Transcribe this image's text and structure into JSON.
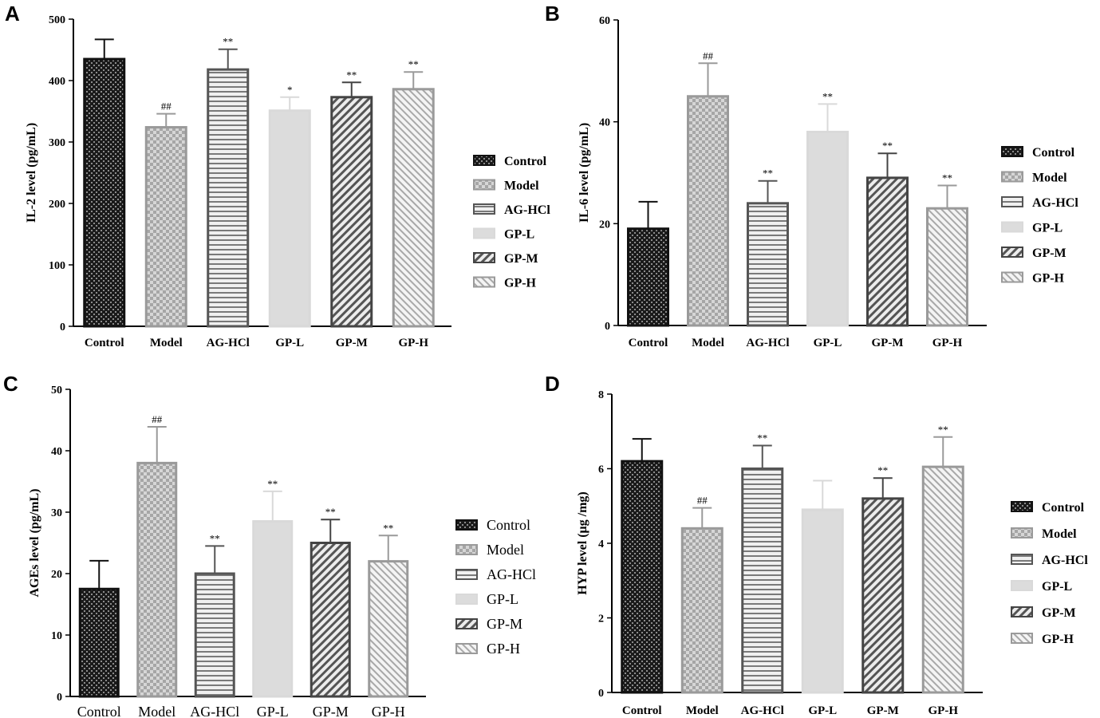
{
  "figure": {
    "series_styles": [
      {
        "name": "Control",
        "stroke": "#111111",
        "pattern": "check-dark"
      },
      {
        "name": "Model",
        "stroke": "#9a9a9a",
        "pattern": "check-light"
      },
      {
        "name": "AG-HCl",
        "stroke": "#555555",
        "pattern": "hlines"
      },
      {
        "name": "GP-L",
        "stroke": "#d9d9d9",
        "pattern": "solid-light"
      },
      {
        "name": "GP-M",
        "stroke": "#444444",
        "pattern": "diag-dark"
      },
      {
        "name": "GP-H",
        "stroke": "#9a9a9a",
        "pattern": "diag-light"
      }
    ]
  },
  "chart_data": [
    {
      "panel": "A",
      "type": "bar",
      "title": "",
      "xlabel": "",
      "ylabel": "IL-2 level (pg/mL)",
      "categories": [
        "Control",
        "Model",
        "AG-HCl",
        "GP-L",
        "GP-M",
        "GP-H"
      ],
      "values": [
        435,
        324,
        418,
        351,
        373,
        386
      ],
      "errors": [
        32,
        22,
        33,
        22,
        24,
        28
      ],
      "significance": [
        "",
        "##",
        "**",
        "*",
        "**",
        "**"
      ],
      "ylim": [
        0,
        500
      ],
      "yticks": [
        0,
        100,
        200,
        300,
        400,
        500
      ],
      "legend": [
        "Control",
        "Model",
        "AG-HCl",
        "GP-L",
        "GP-M",
        "GP-H"
      ],
      "legend_position": "right"
    },
    {
      "panel": "B",
      "type": "bar",
      "title": "",
      "xlabel": "",
      "ylabel": "IL-6 level (pg/mL)",
      "categories": [
        "Control",
        "Model",
        "AG-HCl",
        "GP-L",
        "GP-M",
        "GP-H"
      ],
      "values": [
        19,
        45,
        24,
        38,
        29,
        23
      ],
      "errors": [
        5.3,
        6.5,
        4.4,
        5.5,
        4.8,
        4.5
      ],
      "significance": [
        "",
        "##",
        "**",
        "**",
        "**",
        "**"
      ],
      "ylim": [
        0,
        60
      ],
      "yticks": [
        0,
        20,
        40,
        60
      ],
      "legend": [
        "Control",
        "Model",
        "AG-HCl",
        "GP-L",
        "GP-M",
        "GP-H"
      ],
      "legend_position": "right"
    },
    {
      "panel": "C",
      "type": "bar",
      "title": "",
      "xlabel": "",
      "ylabel": "AGEs level (pg/mL)",
      "categories": [
        "Control",
        "Model",
        "AG-HCl",
        "GP-L",
        "GP-M",
        "GP-H"
      ],
      "values": [
        17.5,
        38,
        20,
        28.5,
        25,
        22
      ],
      "errors": [
        4.6,
        5.9,
        4.5,
        4.9,
        3.8,
        4.2
      ],
      "significance": [
        "",
        "##",
        "**",
        "**",
        "**",
        "**"
      ],
      "ylim": [
        0,
        50
      ],
      "yticks": [
        0,
        10,
        20,
        30,
        40,
        50
      ],
      "legend": [
        "Control",
        "Model",
        "AG-HCl",
        "GP-L",
        "GP-M",
        "GP-H"
      ],
      "legend_position": "right"
    },
    {
      "panel": "D",
      "type": "bar",
      "title": "",
      "xlabel": "",
      "ylabel": "HYP level (μg /mg)",
      "categories": [
        "Control",
        "Model",
        "AG-HCl",
        "GP-L",
        "GP-M",
        "GP-H"
      ],
      "values": [
        6.2,
        4.4,
        6.0,
        4.9,
        5.2,
        6.05
      ],
      "errors": [
        0.6,
        0.55,
        0.62,
        0.78,
        0.55,
        0.8
      ],
      "significance": [
        "",
        "##",
        "**",
        "",
        "**",
        "**"
      ],
      "ylim": [
        0,
        8
      ],
      "yticks": [
        0,
        2,
        4,
        6,
        8
      ],
      "legend": [
        "Control",
        "Model",
        "AG-HCl",
        "GP-L",
        "GP-M",
        "GP-H"
      ],
      "legend_position": "right"
    }
  ]
}
